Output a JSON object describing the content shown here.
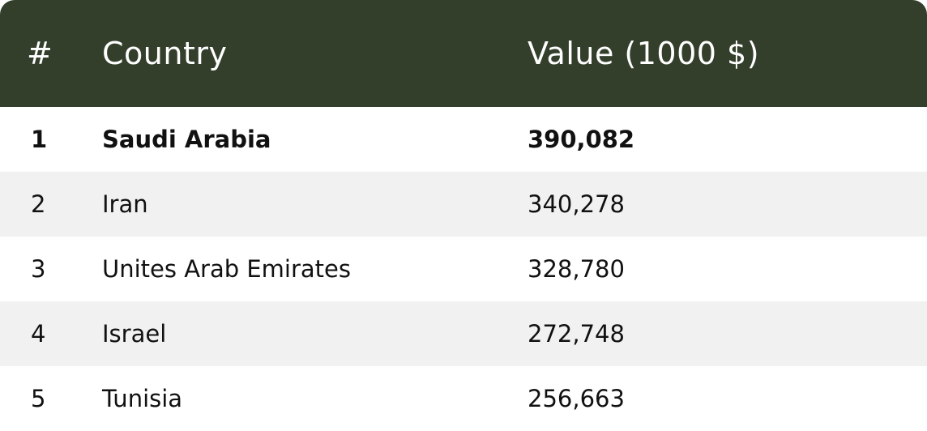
{
  "table": {
    "columns": [
      "#",
      "Country",
      "Value (1000 $)"
    ],
    "header_bg": "#333f2b",
    "stripe_bg": "#f1f1f1",
    "rows": [
      {
        "rank": "1",
        "country": "Saudi Arabia",
        "value": "390,082"
      },
      {
        "rank": "2",
        "country": "Iran",
        "value": "340,278"
      },
      {
        "rank": "3",
        "country": "Unites Arab Emirates",
        "value": "328,780"
      },
      {
        "rank": "4",
        "country": "Israel",
        "value": "272,748"
      },
      {
        "rank": "5",
        "country": "Tunisia",
        "value": "256,663"
      }
    ]
  }
}
